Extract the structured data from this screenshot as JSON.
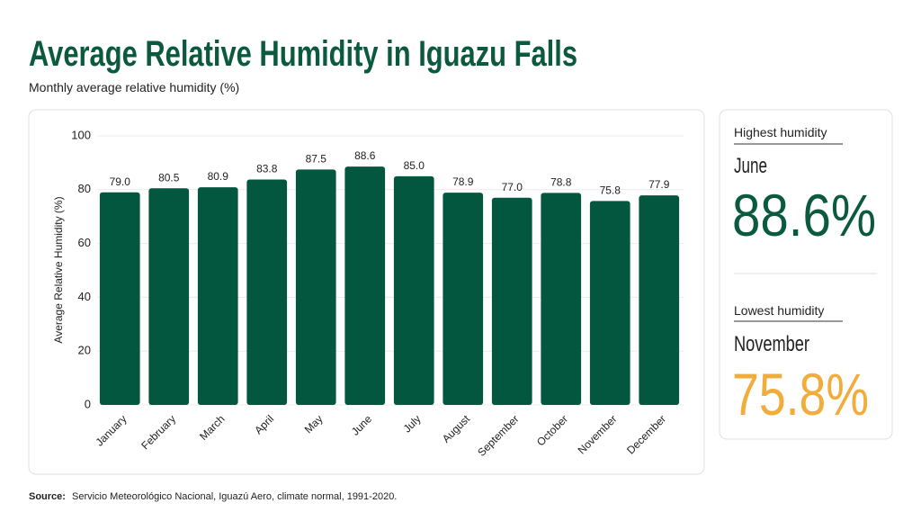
{
  "chart_data": {
    "type": "bar",
    "title": "Average Relative Humidity in Iguazu Falls",
    "subtitle": "Monthly average relative humidity (%)",
    "y_label": "Average Relative Humidity (%)",
    "categories": [
      "January",
      "February",
      "March",
      "April",
      "May",
      "June",
      "July",
      "August",
      "September",
      "October",
      "November",
      "December"
    ],
    "values": [
      79.0,
      80.5,
      80.9,
      83.8,
      87.5,
      88.6,
      85.0,
      78.9,
      77.0,
      78.8,
      75.8,
      77.9
    ],
    "value_labels": [
      "79.0",
      "80.5",
      "80.9",
      "83.8",
      "87.5",
      "88.6",
      "85.0",
      "78.9",
      "77.0",
      "78.8",
      "75.8",
      "77.9"
    ],
    "color": "#03573f",
    "ylim": [
      0,
      100
    ],
    "yticks": [
      0,
      20,
      40,
      60,
      80,
      100
    ],
    "grid": true
  },
  "highlights": {
    "highest": {
      "label": "Highest humidity",
      "month": "June",
      "value": "88.6%"
    },
    "lowest": {
      "label": "Lowest humidity",
      "month": "November",
      "value": "75.8%"
    }
  },
  "source": {
    "label": "Source:",
    "text": "Servicio Meteorológico Nacional, Iguazú Aero, climate normal, 1991-2020."
  }
}
